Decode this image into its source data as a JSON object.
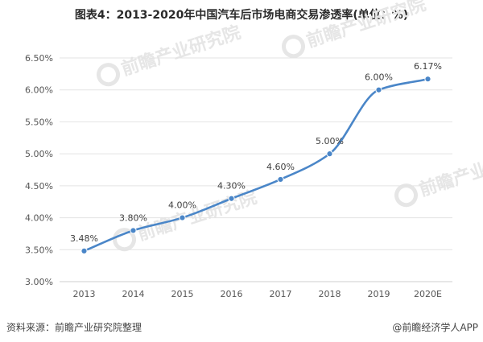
{
  "chart_data": {
    "type": "line",
    "title": "图表4：2013-2020年中国汽车后市场电商交易渗透率(单位：%)",
    "categories": [
      "2013",
      "2014",
      "2015",
      "2016",
      "2017",
      "2018",
      "2019",
      "2020E"
    ],
    "series": [
      {
        "values": [
          3.48,
          3.8,
          4.0,
          4.3,
          4.6,
          5.0,
          6.0,
          6.17
        ],
        "labels": [
          "3.48%",
          "3.80%",
          "4.00%",
          "4.30%",
          "4.60%",
          "5.00%",
          "6.00%",
          "6.17%"
        ],
        "color": "#4a86c8"
      }
    ],
    "yticks": [
      "6.50%",
      "6.00%",
      "5.50%",
      "5.00%",
      "4.50%",
      "4.00%",
      "3.50%",
      "3.00%"
    ],
    "ylim": [
      3.0,
      6.5
    ],
    "grid": true,
    "legend": "none"
  },
  "watermark": {
    "text": "前瞻产业研究院",
    "color": "#e6e6e6"
  },
  "footer": {
    "source": "资料来源：前瞻产业研究院整理",
    "brand": "@前瞻经济学人APP"
  }
}
